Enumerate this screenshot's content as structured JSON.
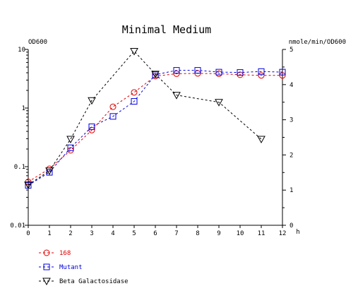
{
  "chart_data": {
    "type": "line",
    "title": "Minimal Medium",
    "xlabel": "h",
    "ylabel_left": "OD600",
    "ylabel_right": "nmole/min/OD600",
    "xlim": [
      0,
      12
    ],
    "ylim_left": [
      0.01,
      10
    ],
    "ylim_right": [
      0,
      5
    ],
    "left_scale": "log",
    "x_ticks": [
      0,
      1,
      2,
      3,
      4,
      5,
      6,
      7,
      8,
      9,
      10,
      11,
      12
    ],
    "left_ticks": [
      {
        "value": 0.01,
        "label": "0.01"
      },
      {
        "value": 0.1,
        "label": "0.1"
      },
      {
        "value": 1,
        "label": "1"
      },
      {
        "value": 10,
        "label": "10"
      }
    ],
    "right_ticks": [
      0,
      1,
      2,
      3,
      4,
      5
    ],
    "grid": false,
    "legend_position": "bottom-left",
    "series": [
      {
        "name": "168",
        "axis": "left",
        "color": "#e00000",
        "marker": "circle",
        "x": [
          0,
          1,
          2,
          3,
          4,
          5,
          6,
          7,
          8,
          9,
          10,
          11,
          12
        ],
        "values": [
          0.055,
          0.092,
          0.19,
          0.42,
          1.05,
          1.85,
          3.5,
          3.85,
          3.9,
          3.85,
          3.7,
          3.6,
          3.6
        ]
      },
      {
        "name": "Mutant",
        "axis": "left",
        "color": "#0000e0",
        "marker": "square",
        "x": [
          0,
          1,
          2,
          3,
          4,
          5,
          6,
          7,
          8,
          9,
          10,
          11,
          12
        ],
        "values": [
          0.048,
          0.08,
          0.21,
          0.48,
          0.72,
          1.3,
          3.7,
          4.4,
          4.4,
          4.1,
          4.05,
          4.2,
          4.1
        ]
      },
      {
        "name": "Beta Galactosidase",
        "axis": "right",
        "color": "#000000",
        "marker": "triangle-down",
        "x": [
          0,
          1,
          2,
          3,
          5,
          6,
          7,
          9,
          11
        ],
        "values": [
          1.15,
          1.55,
          2.45,
          3.55,
          4.95,
          4.3,
          3.7,
          3.5,
          2.45
        ]
      }
    ]
  }
}
